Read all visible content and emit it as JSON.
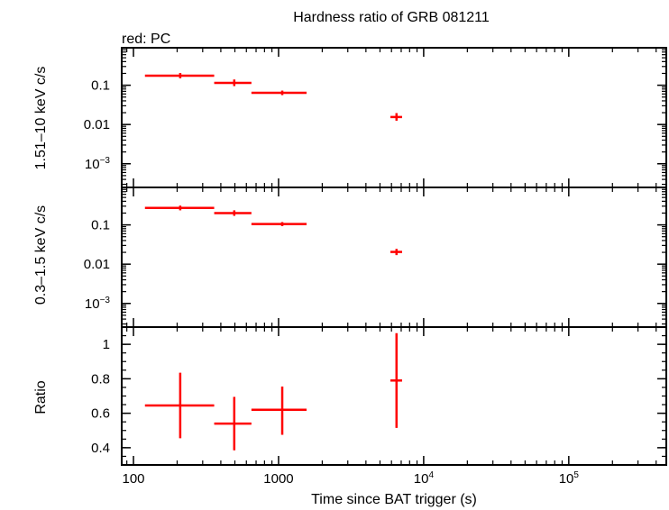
{
  "chart_data": {
    "title": "Hardness ratio of GRB 081211",
    "subtitle": "red: PC",
    "xlabel": "Time since BAT trigger (s)",
    "x_scale": "log",
    "xlim": [
      83,
      470000
    ],
    "x_ticks": [
      {
        "value": 100,
        "label": "100"
      },
      {
        "value": 1000,
        "label": "1000"
      },
      {
        "value": 10000,
        "label": "10",
        "exp": "4"
      },
      {
        "value": 100000,
        "label": "10",
        "exp": "5"
      }
    ],
    "series_color": "#ff0000",
    "panels": [
      {
        "type": "scatter",
        "ylabel": "1.51–10 keV c/s",
        "y_scale": "log",
        "ylim": [
          0.00025,
          0.9
        ],
        "y_ticks": [
          {
            "value": 0.1,
            "label": "0.1"
          },
          {
            "value": 0.01,
            "label": "0.01"
          },
          {
            "value": 0.001,
            "label": "10",
            "exp": "−3"
          }
        ],
        "points": [
          {
            "x": 210,
            "xlo": 120,
            "xhi": 360,
            "y": 0.175,
            "ylo": 0.15,
            "yhi": 0.205
          },
          {
            "x": 495,
            "xlo": 360,
            "xhi": 650,
            "y": 0.115,
            "ylo": 0.095,
            "yhi": 0.14
          },
          {
            "x": 1060,
            "xlo": 650,
            "xhi": 1560,
            "y": 0.064,
            "ylo": 0.056,
            "yhi": 0.073
          },
          {
            "x": 6500,
            "xlo": 5900,
            "xhi": 7100,
            "y": 0.0155,
            "ylo": 0.0125,
            "yhi": 0.0195
          }
        ]
      },
      {
        "type": "scatter",
        "ylabel": "0.3–1.5 keV c/s",
        "y_scale": "log",
        "ylim": [
          0.00025,
          0.9
        ],
        "y_ticks": [
          {
            "value": 0.1,
            "label": "0.1"
          },
          {
            "value": 0.01,
            "label": "0.01"
          },
          {
            "value": 0.001,
            "label": "10",
            "exp": "−3"
          }
        ],
        "points": [
          {
            "x": 210,
            "xlo": 120,
            "xhi": 360,
            "y": 0.27,
            "ylo": 0.235,
            "yhi": 0.31
          },
          {
            "x": 495,
            "xlo": 360,
            "xhi": 650,
            "y": 0.2,
            "ylo": 0.17,
            "yhi": 0.235
          },
          {
            "x": 1060,
            "xlo": 650,
            "xhi": 1560,
            "y": 0.105,
            "ylo": 0.093,
            "yhi": 0.118
          },
          {
            "x": 6500,
            "xlo": 5900,
            "xhi": 7100,
            "y": 0.0205,
            "ylo": 0.017,
            "yhi": 0.0245
          }
        ]
      },
      {
        "type": "scatter",
        "ylabel": "Ratio",
        "y_scale": "linear",
        "ylim": [
          0.3,
          1.1
        ],
        "y_ticks": [
          {
            "value": 0.4,
            "label": "0.4"
          },
          {
            "value": 0.6,
            "label": "0.6"
          },
          {
            "value": 0.8,
            "label": "0.8"
          },
          {
            "value": 1,
            "label": "1"
          }
        ],
        "y_minor_step": 0.05,
        "points": [
          {
            "x": 210,
            "xlo": 120,
            "xhi": 360,
            "y": 0.645,
            "ylo": 0.455,
            "yhi": 0.835
          },
          {
            "x": 495,
            "xlo": 360,
            "xhi": 650,
            "y": 0.54,
            "ylo": 0.385,
            "yhi": 0.695
          },
          {
            "x": 1060,
            "xlo": 650,
            "xhi": 1560,
            "y": 0.62,
            "ylo": 0.475,
            "yhi": 0.755
          },
          {
            "x": 6500,
            "xlo": 5900,
            "xhi": 7100,
            "y": 0.79,
            "ylo": 0.515,
            "yhi": 1.065
          }
        ]
      }
    ]
  }
}
